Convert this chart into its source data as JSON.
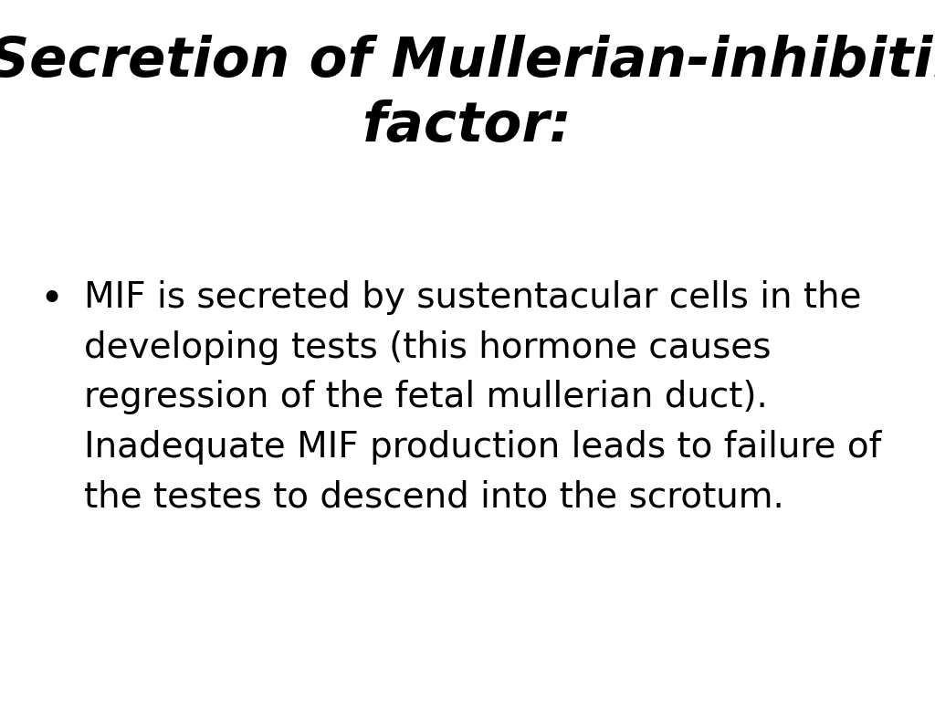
{
  "title_line1": "f- Secretion of Mullerian-inhibiting",
  "title_line2": "factor:",
  "title_fontsize": 44,
  "title_color": "#000000",
  "background_color": "#ffffff",
  "bullet_lines": [
    "MIF is secreted by sustentacular cells in the",
    "developing tests (this hormone causes",
    "regression of the fetal mullerian duct).",
    "Inadequate MIF production leads to failure of",
    "the testes to descend into the scrotum."
  ],
  "bullet_fontsize": 28,
  "bullet_color": "#000000",
  "bullet_marker": "•",
  "figsize": [
    10.24,
    7.68
  ],
  "dpi": 100
}
